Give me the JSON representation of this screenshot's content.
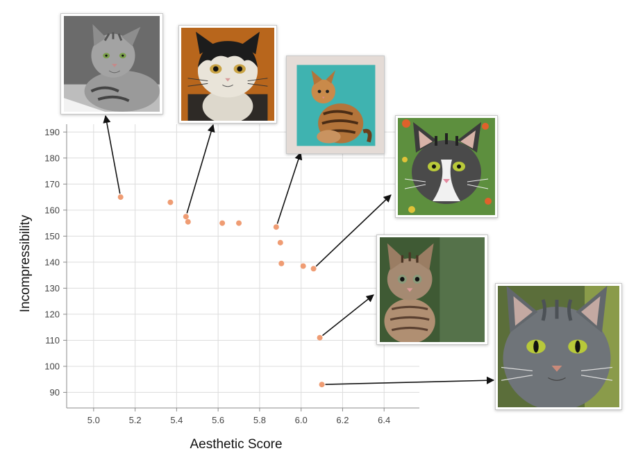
{
  "chart_data": {
    "type": "scatter",
    "xlabel": "Aesthetic Score",
    "ylabel": "Incompressibility",
    "xlim": [
      4.87,
      6.57
    ],
    "ylim": [
      84,
      193
    ],
    "xticks": [
      "5.0",
      "5.2",
      "5.4",
      "5.6",
      "5.8",
      "6.0",
      "6.2",
      "6.4"
    ],
    "yticks": [
      "90",
      "100",
      "110",
      "120",
      "130",
      "140",
      "150",
      "160",
      "170",
      "180",
      "190"
    ],
    "grid": true,
    "point_color": "#ef9c73",
    "points": [
      {
        "x": 5.13,
        "y": 165
      },
      {
        "x": 5.37,
        "y": 163
      },
      {
        "x": 5.445,
        "y": 157.5
      },
      {
        "x": 5.455,
        "y": 155.5
      },
      {
        "x": 5.62,
        "y": 155
      },
      {
        "x": 5.7,
        "y": 155
      },
      {
        "x": 5.88,
        "y": 153.5
      },
      {
        "x": 5.9,
        "y": 147.5
      },
      {
        "x": 5.905,
        "y": 139.5
      },
      {
        "x": 6.01,
        "y": 138.5
      },
      {
        "x": 6.06,
        "y": 137.5
      },
      {
        "x": 6.09,
        "y": 111
      },
      {
        "x": 6.1,
        "y": 93
      }
    ],
    "annotations": [
      {
        "point": 0,
        "image": "gray-tabby-cat-lying"
      },
      {
        "point": 2,
        "image": "painted-black-white-cat"
      },
      {
        "point": 6,
        "image": "painted-orange-tabby-cat-teal-background"
      },
      {
        "point": 10,
        "image": "gray-white-cat-in-flowers"
      },
      {
        "point": 11,
        "image": "tabby-kitten-green-background"
      },
      {
        "point": 12,
        "image": "gray-cat-closeup"
      }
    ]
  }
}
